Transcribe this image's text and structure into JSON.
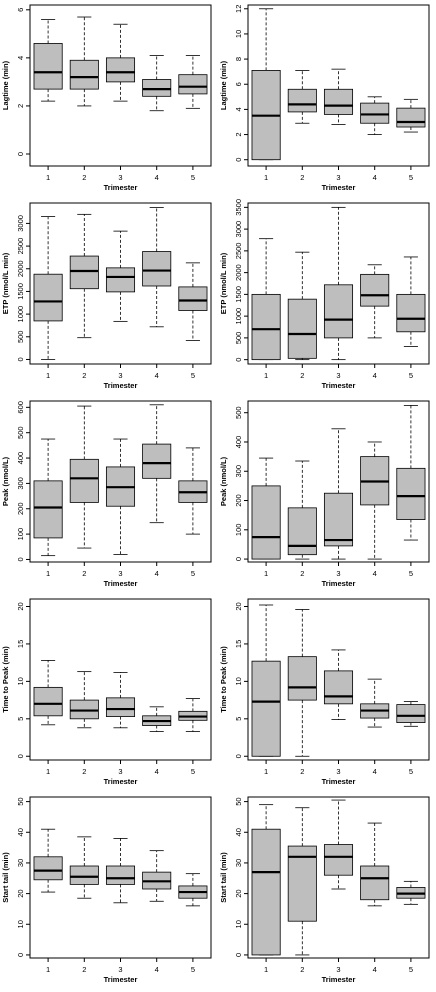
{
  "chart_data": [
    {
      "type": "boxplot",
      "panel": "left-1",
      "xlabel": "Trimester",
      "ylabel": "Lagtime (min)",
      "categories": [
        "1",
        "2",
        "3",
        "4",
        "5"
      ],
      "ylim": [
        -0.5,
        6.2
      ],
      "yticks": [
        0,
        2,
        4,
        6
      ],
      "boxes": [
        {
          "whisker_low": 2.2,
          "q1": 2.7,
          "median": 3.4,
          "q3": 4.6,
          "whisker_high": 5.6
        },
        {
          "whisker_low": 2.0,
          "q1": 2.7,
          "median": 3.2,
          "q3": 3.9,
          "whisker_high": 5.7
        },
        {
          "whisker_low": 2.2,
          "q1": 3.0,
          "median": 3.4,
          "q3": 4.0,
          "whisker_high": 5.4
        },
        {
          "whisker_low": 1.8,
          "q1": 2.4,
          "median": 2.7,
          "q3": 3.1,
          "whisker_high": 4.1
        },
        {
          "whisker_low": 1.9,
          "q1": 2.5,
          "median": 2.8,
          "q3": 3.3,
          "whisker_high": 4.1
        }
      ]
    },
    {
      "type": "boxplot",
      "panel": "right-1",
      "xlabel": "Trimester",
      "ylabel": "Lagtime (min)",
      "categories": [
        "1",
        "2",
        "3",
        "4",
        "5"
      ],
      "ylim": [
        -0.5,
        12.3
      ],
      "yticks": [
        0,
        2,
        4,
        6,
        8,
        10,
        12
      ],
      "boxes": [
        {
          "whisker_low": 0.0,
          "q1": 0.0,
          "median": 3.5,
          "q3": 7.1,
          "whisker_high": 12.0
        },
        {
          "whisker_low": 2.9,
          "q1": 3.8,
          "median": 4.4,
          "q3": 5.6,
          "whisker_high": 7.1
        },
        {
          "whisker_low": 2.8,
          "q1": 3.6,
          "median": 4.3,
          "q3": 5.6,
          "whisker_high": 7.2
        },
        {
          "whisker_low": 2.0,
          "q1": 2.9,
          "median": 3.6,
          "q3": 4.5,
          "whisker_high": 5.0
        },
        {
          "whisker_low": 2.2,
          "q1": 2.6,
          "median": 3.0,
          "q3": 4.1,
          "whisker_high": 4.8
        }
      ]
    },
    {
      "type": "boxplot",
      "panel": "left-2",
      "xlabel": "Trimester",
      "ylabel": "ETP (nmol/L min)",
      "categories": [
        "1",
        "2",
        "3",
        "4",
        "5"
      ],
      "ylim": [
        -100,
        3450
      ],
      "yticks": [
        0,
        500,
        1000,
        1500,
        2000,
        2500,
        3000
      ],
      "boxes": [
        {
          "whisker_low": 0,
          "q1": 850,
          "median": 1280,
          "q3": 1880,
          "whisker_high": 3150
        },
        {
          "whisker_low": 480,
          "q1": 1560,
          "median": 1950,
          "q3": 2280,
          "whisker_high": 3200
        },
        {
          "whisker_low": 840,
          "q1": 1490,
          "median": 1820,
          "q3": 2020,
          "whisker_high": 2830
        },
        {
          "whisker_low": 720,
          "q1": 1620,
          "median": 1960,
          "q3": 2380,
          "whisker_high": 3350
        },
        {
          "whisker_low": 420,
          "q1": 1080,
          "median": 1300,
          "q3": 1600,
          "whisker_high": 2130
        }
      ]
    },
    {
      "type": "boxplot",
      "panel": "right-2",
      "xlabel": "Trimester",
      "ylabel": "ETP (nmol/L min)",
      "categories": [
        "1",
        "2",
        "3",
        "4",
        "5"
      ],
      "ylim": [
        -100,
        3600
      ],
      "yticks": [
        0,
        500,
        1000,
        1500,
        2000,
        2500,
        3000,
        3500
      ],
      "boxes": [
        {
          "whisker_low": 0,
          "q1": 0,
          "median": 700,
          "q3": 1500,
          "whisker_high": 2780
        },
        {
          "whisker_low": 0,
          "q1": 30,
          "median": 590,
          "q3": 1390,
          "whisker_high": 2470
        },
        {
          "whisker_low": 0,
          "q1": 500,
          "median": 920,
          "q3": 1720,
          "whisker_high": 3500
        },
        {
          "whisker_low": 500,
          "q1": 1230,
          "median": 1480,
          "q3": 1960,
          "whisker_high": 2180
        },
        {
          "whisker_low": 300,
          "q1": 640,
          "median": 940,
          "q3": 1500,
          "whisker_high": 2360
        }
      ]
    },
    {
      "type": "boxplot",
      "panel": "left-3",
      "xlabel": "Trimester",
      "ylabel": "Peak (nmol/L)",
      "categories": [
        "1",
        "2",
        "3",
        "4",
        "5"
      ],
      "ylim": [
        -10,
        625
      ],
      "yticks": [
        0,
        100,
        200,
        300,
        400,
        500,
        600
      ],
      "boxes": [
        {
          "whisker_low": 15,
          "q1": 85,
          "median": 205,
          "q3": 310,
          "whisker_high": 475
        },
        {
          "whisker_low": 45,
          "q1": 225,
          "median": 320,
          "q3": 395,
          "whisker_high": 605
        },
        {
          "whisker_low": 20,
          "q1": 210,
          "median": 285,
          "q3": 365,
          "whisker_high": 475
        },
        {
          "whisker_low": 145,
          "q1": 320,
          "median": 380,
          "q3": 455,
          "whisker_high": 610
        },
        {
          "whisker_low": 100,
          "q1": 225,
          "median": 265,
          "q3": 310,
          "whisker_high": 440
        }
      ]
    },
    {
      "type": "boxplot",
      "panel": "right-3",
      "xlabel": "Trimester",
      "ylabel": "Peak (nmol/L)",
      "categories": [
        "1",
        "2",
        "3",
        "4",
        "5"
      ],
      "ylim": [
        -10,
        540
      ],
      "yticks": [
        0,
        100,
        200,
        300,
        400,
        500
      ],
      "boxes": [
        {
          "whisker_low": 0,
          "q1": 0,
          "median": 75,
          "q3": 250,
          "whisker_high": 345
        },
        {
          "whisker_low": 0,
          "q1": 15,
          "median": 45,
          "q3": 175,
          "whisker_high": 335
        },
        {
          "whisker_low": 0,
          "q1": 45,
          "median": 65,
          "q3": 225,
          "whisker_high": 445
        },
        {
          "whisker_low": 0,
          "q1": 185,
          "median": 265,
          "q3": 350,
          "whisker_high": 400
        },
        {
          "whisker_low": 65,
          "q1": 135,
          "median": 215,
          "q3": 310,
          "whisker_high": 525
        }
      ]
    },
    {
      "type": "boxplot",
      "panel": "left-4",
      "xlabel": "Trimester",
      "ylabel": "Time to Peak (min)",
      "categories": [
        "1",
        "2",
        "3",
        "4",
        "5"
      ],
      "ylim": [
        -0.5,
        21
      ],
      "yticks": [
        0,
        5,
        10,
        15,
        20
      ],
      "boxes": [
        {
          "whisker_low": 4.2,
          "q1": 5.4,
          "median": 7.0,
          "q3": 9.2,
          "whisker_high": 12.8
        },
        {
          "whisker_low": 3.8,
          "q1": 5.0,
          "median": 6.1,
          "q3": 7.5,
          "whisker_high": 11.3
        },
        {
          "whisker_low": 3.8,
          "q1": 5.3,
          "median": 6.3,
          "q3": 7.8,
          "whisker_high": 11.2
        },
        {
          "whisker_low": 3.3,
          "q1": 4.1,
          "median": 4.7,
          "q3": 5.4,
          "whisker_high": 6.6
        },
        {
          "whisker_low": 3.3,
          "q1": 4.8,
          "median": 5.3,
          "q3": 6.0,
          "whisker_high": 7.7
        }
      ]
    },
    {
      "type": "boxplot",
      "panel": "right-4",
      "xlabel": "Trimester",
      "ylabel": "Time to Peak (min)",
      "categories": [
        "1",
        "2",
        "3",
        "4",
        "5"
      ],
      "ylim": [
        -0.5,
        21
      ],
      "yticks": [
        0,
        5,
        10,
        15,
        20
      ],
      "boxes": [
        {
          "whisker_low": 0.0,
          "q1": 0.0,
          "median": 7.3,
          "q3": 12.7,
          "whisker_high": 20.2
        },
        {
          "whisker_low": 0.0,
          "q1": 7.5,
          "median": 9.2,
          "q3": 13.3,
          "whisker_high": 19.6
        },
        {
          "whisker_low": 4.9,
          "q1": 7.0,
          "median": 8.0,
          "q3": 11.4,
          "whisker_high": 14.2
        },
        {
          "whisker_low": 3.9,
          "q1": 5.1,
          "median": 6.1,
          "q3": 7.0,
          "whisker_high": 10.3
        },
        {
          "whisker_low": 4.0,
          "q1": 4.5,
          "median": 5.4,
          "q3": 6.9,
          "whisker_high": 7.3
        }
      ]
    },
    {
      "type": "boxplot",
      "panel": "left-5",
      "xlabel": "Trimester",
      "ylabel": "Start tail (min)",
      "categories": [
        "1",
        "2",
        "3",
        "4",
        "5"
      ],
      "ylim": [
        -1,
        51.5
      ],
      "yticks": [
        0,
        10,
        20,
        30,
        40,
        50
      ],
      "boxes": [
        {
          "whisker_low": 20.5,
          "q1": 24.5,
          "median": 27.5,
          "q3": 32.0,
          "whisker_high": 41.0
        },
        {
          "whisker_low": 18.5,
          "q1": 23.0,
          "median": 25.5,
          "q3": 29.0,
          "whisker_high": 38.5
        },
        {
          "whisker_low": 17.0,
          "q1": 23.0,
          "median": 25.0,
          "q3": 29.0,
          "whisker_high": 38.0
        },
        {
          "whisker_low": 17.5,
          "q1": 21.5,
          "median": 24.0,
          "q3": 27.0,
          "whisker_high": 34.0
        },
        {
          "whisker_low": 16.0,
          "q1": 18.5,
          "median": 20.5,
          "q3": 22.5,
          "whisker_high": 26.5
        }
      ]
    },
    {
      "type": "boxplot",
      "panel": "right-5",
      "xlabel": "Trimester",
      "ylabel": "Start tail (min)",
      "categories": [
        "1",
        "2",
        "3",
        "4",
        "5"
      ],
      "ylim": [
        -1,
        51.5
      ],
      "yticks": [
        0,
        10,
        20,
        30,
        40,
        50
      ],
      "boxes": [
        {
          "whisker_low": 0.0,
          "q1": 0.0,
          "median": 27.0,
          "q3": 41.0,
          "whisker_high": 49.0
        },
        {
          "whisker_low": 0.0,
          "q1": 11.0,
          "median": 32.0,
          "q3": 35.5,
          "whisker_high": 48.0
        },
        {
          "whisker_low": 21.5,
          "q1": 26.0,
          "median": 32.0,
          "q3": 36.0,
          "whisker_high": 50.5
        },
        {
          "whisker_low": 16.0,
          "q1": 18.0,
          "median": 25.0,
          "q3": 29.0,
          "whisker_high": 43.0
        },
        {
          "whisker_low": 16.5,
          "q1": 18.5,
          "median": 20.0,
          "q3": 22.0,
          "whisker_high": 24.0
        }
      ]
    }
  ]
}
